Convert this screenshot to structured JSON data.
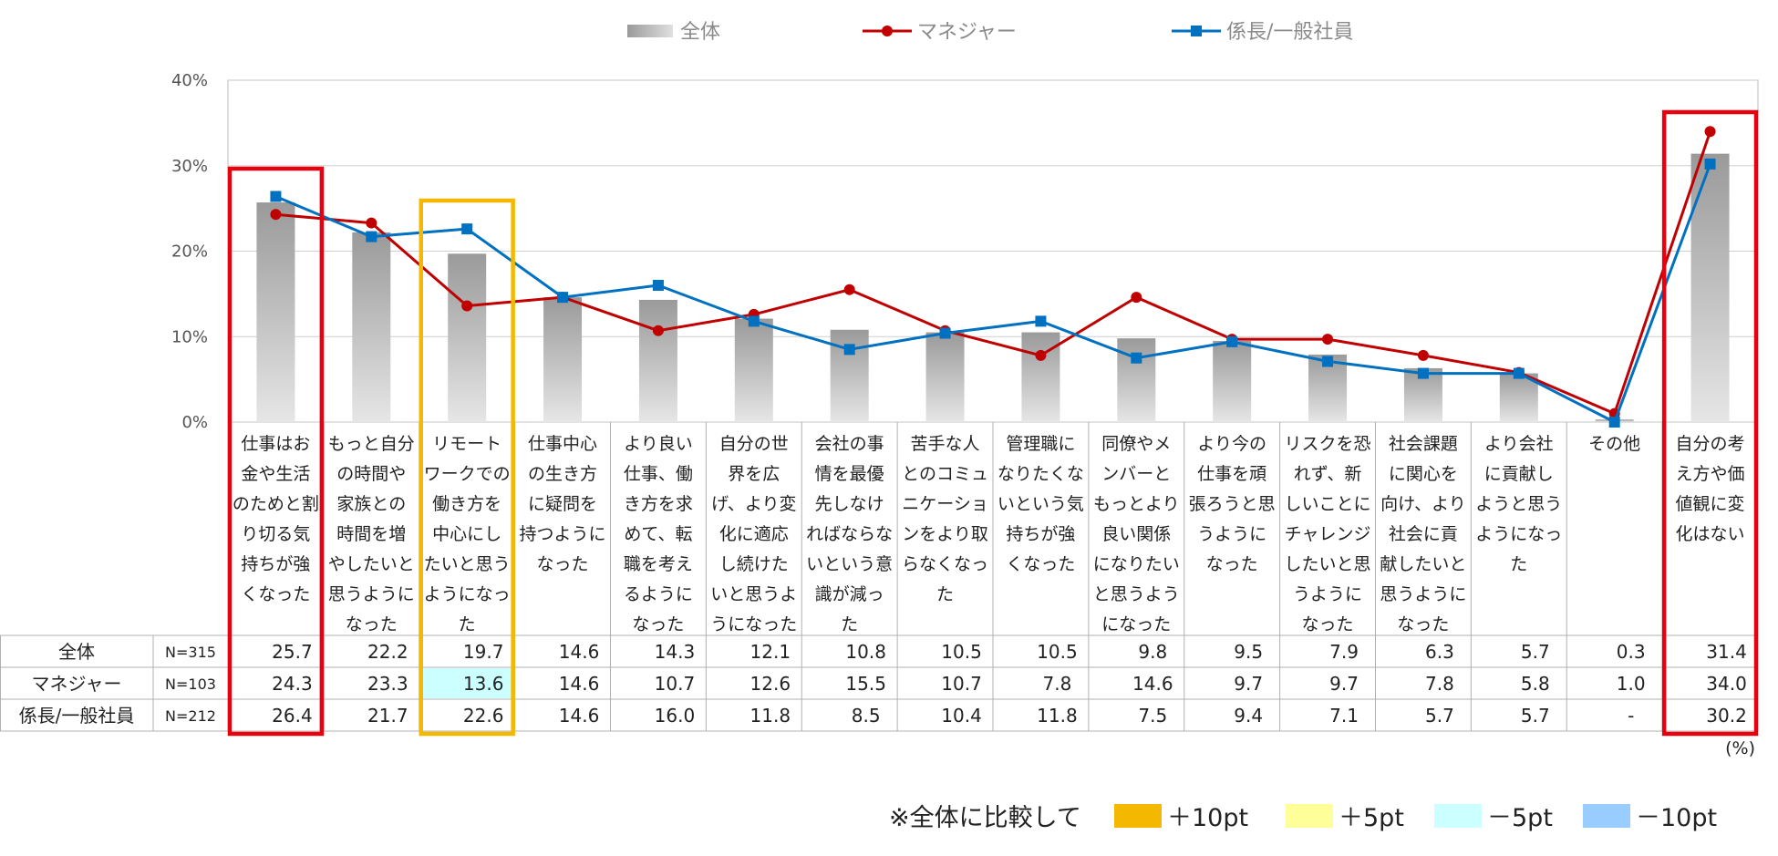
{
  "chart_data": {
    "type": "bar+line",
    "legend": [
      {
        "key": "total",
        "label": "全体",
        "color": "#a9a9a9",
        "marker": "bar"
      },
      {
        "key": "manager",
        "label": "マネジャー",
        "color": "#c00000",
        "marker": "circle"
      },
      {
        "key": "staff",
        "label": "係長/一般社員",
        "color": "#0070c0",
        "marker": "square"
      }
    ],
    "y_axis": {
      "ticks": [
        "0%",
        "10%",
        "20%",
        "30%",
        "40%"
      ],
      "min": 0,
      "max": 40,
      "step": 10
    },
    "categories": [
      [
        "仕事はお",
        "金や生活",
        "のためと割",
        "り切る気",
        "持ちが強",
        "くなった"
      ],
      [
        "もっと自分",
        "の時間や",
        "家族との",
        "時間を増",
        "やしたいと",
        "思うように",
        "なった"
      ],
      [
        "リモート",
        "ワークでの",
        "働き方を",
        "中心にし",
        "たいと思う",
        "ようになっ",
        "た"
      ],
      [
        "仕事中心",
        "の生き方",
        "に疑問を",
        "持つように",
        "なった"
      ],
      [
        "より良い",
        "仕事、働",
        "き方を求",
        "めて、転",
        "職を考え",
        "るように",
        "なった"
      ],
      [
        "自分の世",
        "界を広",
        "げ、より変",
        "化に適応",
        "し続けた",
        "いと思うよ",
        "うになった"
      ],
      [
        "会社の事",
        "情を最優",
        "先しなけ",
        "ればならな",
        "いという意",
        "識が減っ",
        "た"
      ],
      [
        "苦手な人",
        "とのコミュ",
        "ニケーショ",
        "ンをより取",
        "らなくなっ",
        "た"
      ],
      [
        "管理職に",
        "なりたくな",
        "いという気",
        "持ちが強",
        "くなった"
      ],
      [
        "同僚やメ",
        "ンバーと",
        "もっとより",
        "良い関係",
        "になりたい",
        "と思うよう",
        "になった"
      ],
      [
        "より今の",
        "仕事を頑",
        "張ろうと思",
        "うように",
        "なった"
      ],
      [
        "リスクを恐",
        "れず、新",
        "しいことに",
        "チャレンジ",
        "したいと思",
        "うように",
        "なった"
      ],
      [
        "社会課題",
        "に関心を",
        "向け、より",
        "社会に貢",
        "献したいと",
        "思うように",
        "なった"
      ],
      [
        "より会社",
        "に貢献し",
        "ようと思う",
        "ようになっ",
        "た"
      ],
      [
        "その他"
      ],
      [
        "自分の考",
        "え方や価",
        "値観に変",
        "化はない"
      ]
    ],
    "series": [
      {
        "key": "total",
        "name": "全体",
        "n": "N=315",
        "values": [
          25.7,
          22.2,
          19.7,
          14.6,
          14.3,
          12.1,
          10.8,
          10.5,
          10.5,
          9.8,
          9.5,
          7.9,
          6.3,
          5.7,
          0.3,
          31.4
        ],
        "display": [
          "25.7",
          "22.2",
          "19.7",
          "14.6",
          "14.3",
          "12.1",
          "10.8",
          "10.5",
          "10.5",
          "9.8",
          "9.5",
          "7.9",
          "6.3",
          "5.7",
          "0.3",
          "31.4"
        ]
      },
      {
        "key": "manager",
        "name": "マネジャー",
        "n": "N=103",
        "values": [
          24.3,
          23.3,
          13.6,
          14.6,
          10.7,
          12.6,
          15.5,
          10.7,
          7.8,
          14.6,
          9.7,
          9.7,
          7.8,
          5.8,
          1.0,
          34.0
        ],
        "display": [
          "24.3",
          "23.3",
          "13.6",
          "14.6",
          "10.7",
          "12.6",
          "15.5",
          "10.7",
          "7.8",
          "14.6",
          "9.7",
          "9.7",
          "7.8",
          "5.8",
          "1.0",
          "34.0"
        ]
      },
      {
        "key": "staff",
        "name": "係長/一般社員",
        "n": "N=212",
        "values": [
          26.4,
          21.7,
          22.6,
          14.6,
          16.0,
          11.8,
          8.5,
          10.4,
          11.8,
          7.5,
          9.4,
          7.1,
          5.7,
          5.7,
          0,
          30.2
        ],
        "display": [
          "26.4",
          "21.7",
          "22.6",
          "14.6",
          "16.0",
          "11.8",
          "8.5",
          "10.4",
          "11.8",
          "7.5",
          "9.4",
          "7.1",
          "5.7",
          "5.7",
          "-",
          "30.2"
        ]
      }
    ],
    "highlight_cells": [
      {
        "series": "manager",
        "index": 2,
        "level": "-5pt"
      }
    ],
    "highlight_boxes": [
      {
        "index": 0,
        "color": "#e8000f"
      },
      {
        "index": 2,
        "color": "#f5b800"
      },
      {
        "index": 15,
        "color": "#e8000f"
      }
    ],
    "unit_note": "(%)",
    "comparison_legend": {
      "prefix": "※全体に比較して",
      "items": [
        {
          "label": "＋10pt",
          "color": "#f5b800"
        },
        {
          "label": "＋5pt",
          "color": "#ffff99"
        },
        {
          "label": "－5pt",
          "color": "#ccffff"
        },
        {
          "label": "－10pt",
          "color": "#99ccff"
        }
      ]
    }
  }
}
